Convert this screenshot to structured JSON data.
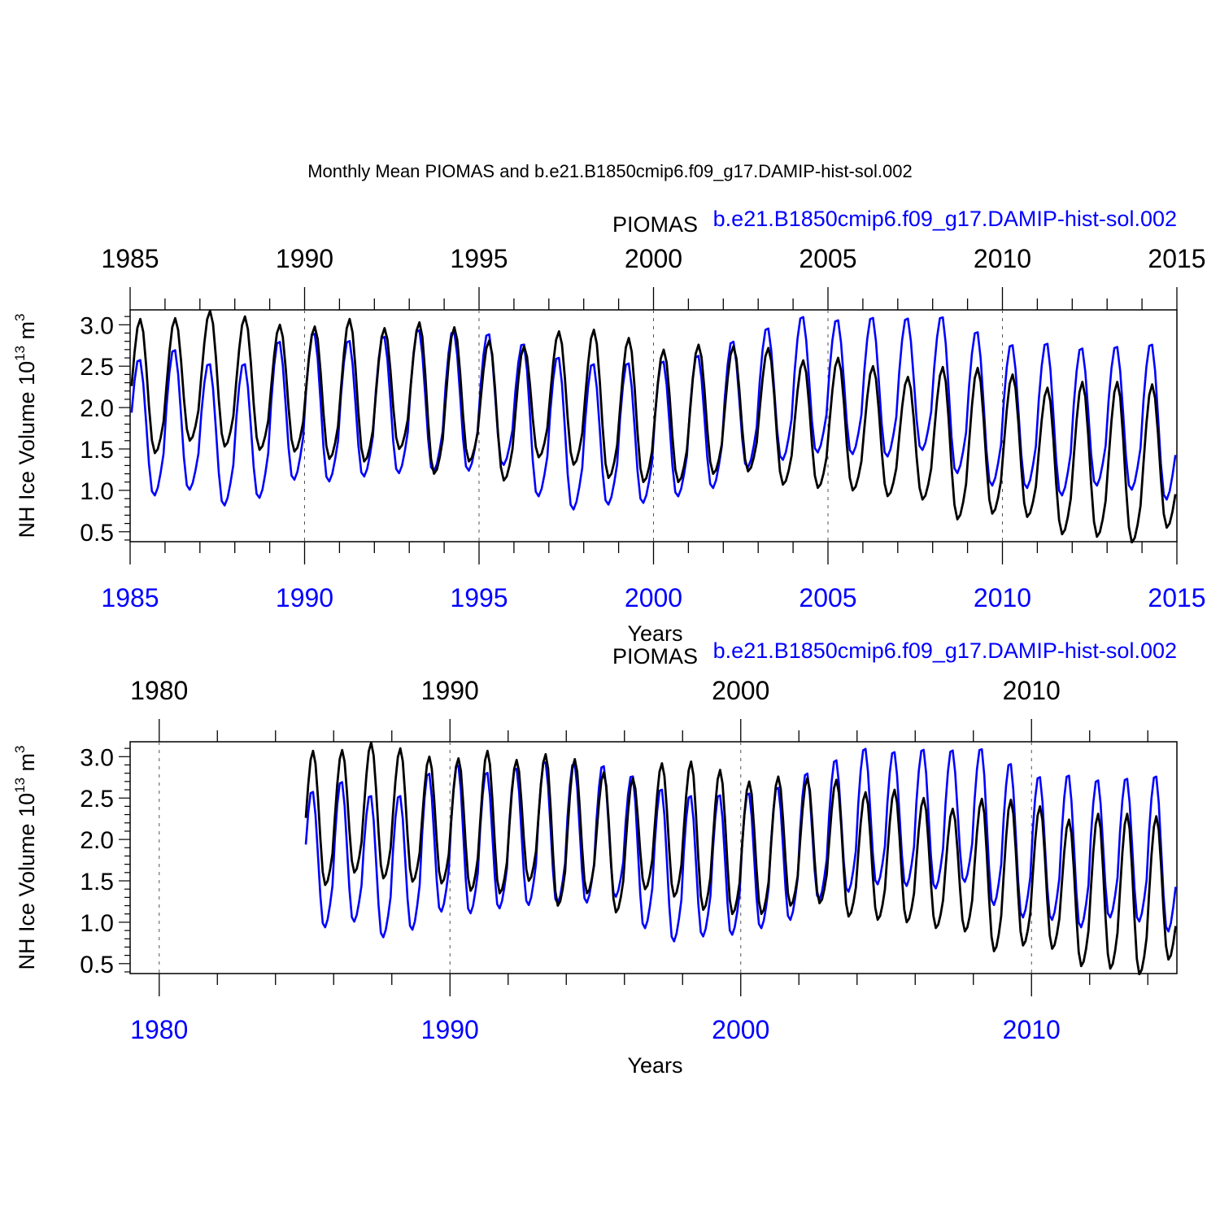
{
  "figure_title": "Monthly Mean PIOMAS and b.e21.B1850cmip6.f09_g17.DAMIP-hist-sol.002",
  "colors": {
    "piomas": "#000000",
    "model": "#0000ff",
    "axis": "#000000"
  },
  "chart_data": [
    {
      "type": "line",
      "panel": "top",
      "legend_left": "PIOMAS",
      "legend_right": "b.e21.B1850cmip6.f09_g17.DAMIP-hist-sol.002",
      "xlabel": "Years",
      "ylabel_main": "NH Ice Volume 10",
      "ylabel_sup": "13",
      "ylabel_unit": " m",
      "ylabel_unit_sup": "3",
      "xlim": [
        1985,
        2015
      ],
      "ylim": [
        0.38,
        3.18
      ],
      "yticks": [
        "0.5",
        "1.0",
        "1.5",
        "2.0",
        "2.5",
        "3.0"
      ],
      "top_ticks": [
        "1985",
        "1990",
        "1995",
        "2000",
        "2005",
        "2010",
        "2015"
      ],
      "bottom_ticks": [
        "1985",
        "1990",
        "1995",
        "2000",
        "2005",
        "2010",
        "2015"
      ],
      "series": [
        {
          "name": "PIOMAS",
          "annual_max": [
            3.07,
            3.08,
            3.17,
            3.1,
            3.0,
            2.98,
            3.07,
            2.96,
            3.03,
            2.97,
            2.81,
            2.74,
            2.92,
            2.94,
            2.84,
            2.7,
            2.76,
            2.74,
            2.72,
            2.57,
            2.6,
            2.5,
            2.37,
            2.49,
            2.48,
            2.4,
            2.24,
            2.31,
            2.31,
            2.28
          ],
          "annual_min": [
            1.45,
            1.6,
            1.53,
            1.49,
            1.47,
            1.38,
            1.35,
            1.5,
            1.2,
            1.35,
            1.12,
            1.4,
            1.31,
            1.15,
            1.1,
            1.1,
            1.2,
            1.23,
            1.07,
            1.03,
            1.0,
            0.93,
            0.89,
            0.65,
            0.72,
            0.68,
            0.47,
            0.44,
            0.37,
            0.55
          ]
        },
        {
          "name": "b.e21.B1850cmip6.f09_g17.DAMIP-hist-sol.002",
          "annual_max": [
            2.6,
            2.72,
            2.55,
            2.55,
            2.82,
            2.92,
            2.83,
            2.88,
            2.96,
            2.94,
            2.91,
            2.79,
            2.63,
            2.55,
            2.56,
            2.58,
            2.65,
            2.82,
            2.98,
            3.12,
            3.08,
            3.11,
            3.1,
            3.12,
            2.94,
            2.78,
            2.8,
            2.74,
            2.76,
            2.79
          ],
          "annual_min": [
            0.93,
            1.0,
            0.81,
            0.9,
            1.12,
            1.1,
            1.16,
            1.2,
            1.22,
            1.23,
            1.3,
            0.92,
            0.76,
            0.82,
            0.84,
            0.92,
            1.02,
            1.27,
            1.36,
            1.45,
            1.43,
            1.4,
            1.48,
            1.2,
            1.05,
            1.02,
            0.93,
            1.05,
            1.0,
            0.88
          ]
        }
      ]
    },
    {
      "type": "line",
      "panel": "bottom",
      "legend_left": "PIOMAS",
      "legend_right": "b.e21.B1850cmip6.f09_g17.DAMIP-hist-sol.002",
      "xlabel": "Years",
      "ylabel_main": "NH Ice Volume 10",
      "ylabel_sup": "13",
      "ylabel_unit": " m",
      "ylabel_unit_sup": "3",
      "xlim": [
        1979,
        2015
      ],
      "ylim": [
        0.38,
        3.18
      ],
      "yticks": [
        "0.5",
        "1.0",
        "1.5",
        "2.0",
        "2.5",
        "3.0"
      ],
      "top_ticks": [
        "1980",
        "1990",
        "2000",
        "2010"
      ],
      "bottom_ticks": [
        "1980",
        "1990",
        "2000",
        "2010"
      ],
      "same_series_as": "top"
    }
  ]
}
